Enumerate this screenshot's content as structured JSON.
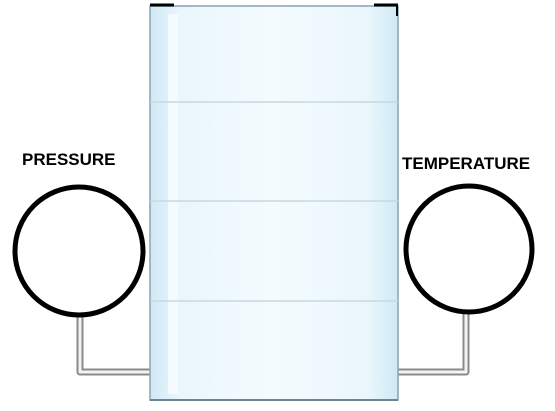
{
  "gauges": {
    "pressure": {
      "label": "PRESSURE"
    },
    "temperature": {
      "label": "TEMPERATURE"
    }
  },
  "colors": {
    "outline": "#000000",
    "tank_fill": "#e6f4fb",
    "tank_highlight": "#f7fcff",
    "tank_edge": "#88a4b4",
    "divider": "#c8d8e0",
    "pipe": "#8a8a8a",
    "pipe_inner": "#f4f4f4",
    "background": "#ffffff"
  }
}
